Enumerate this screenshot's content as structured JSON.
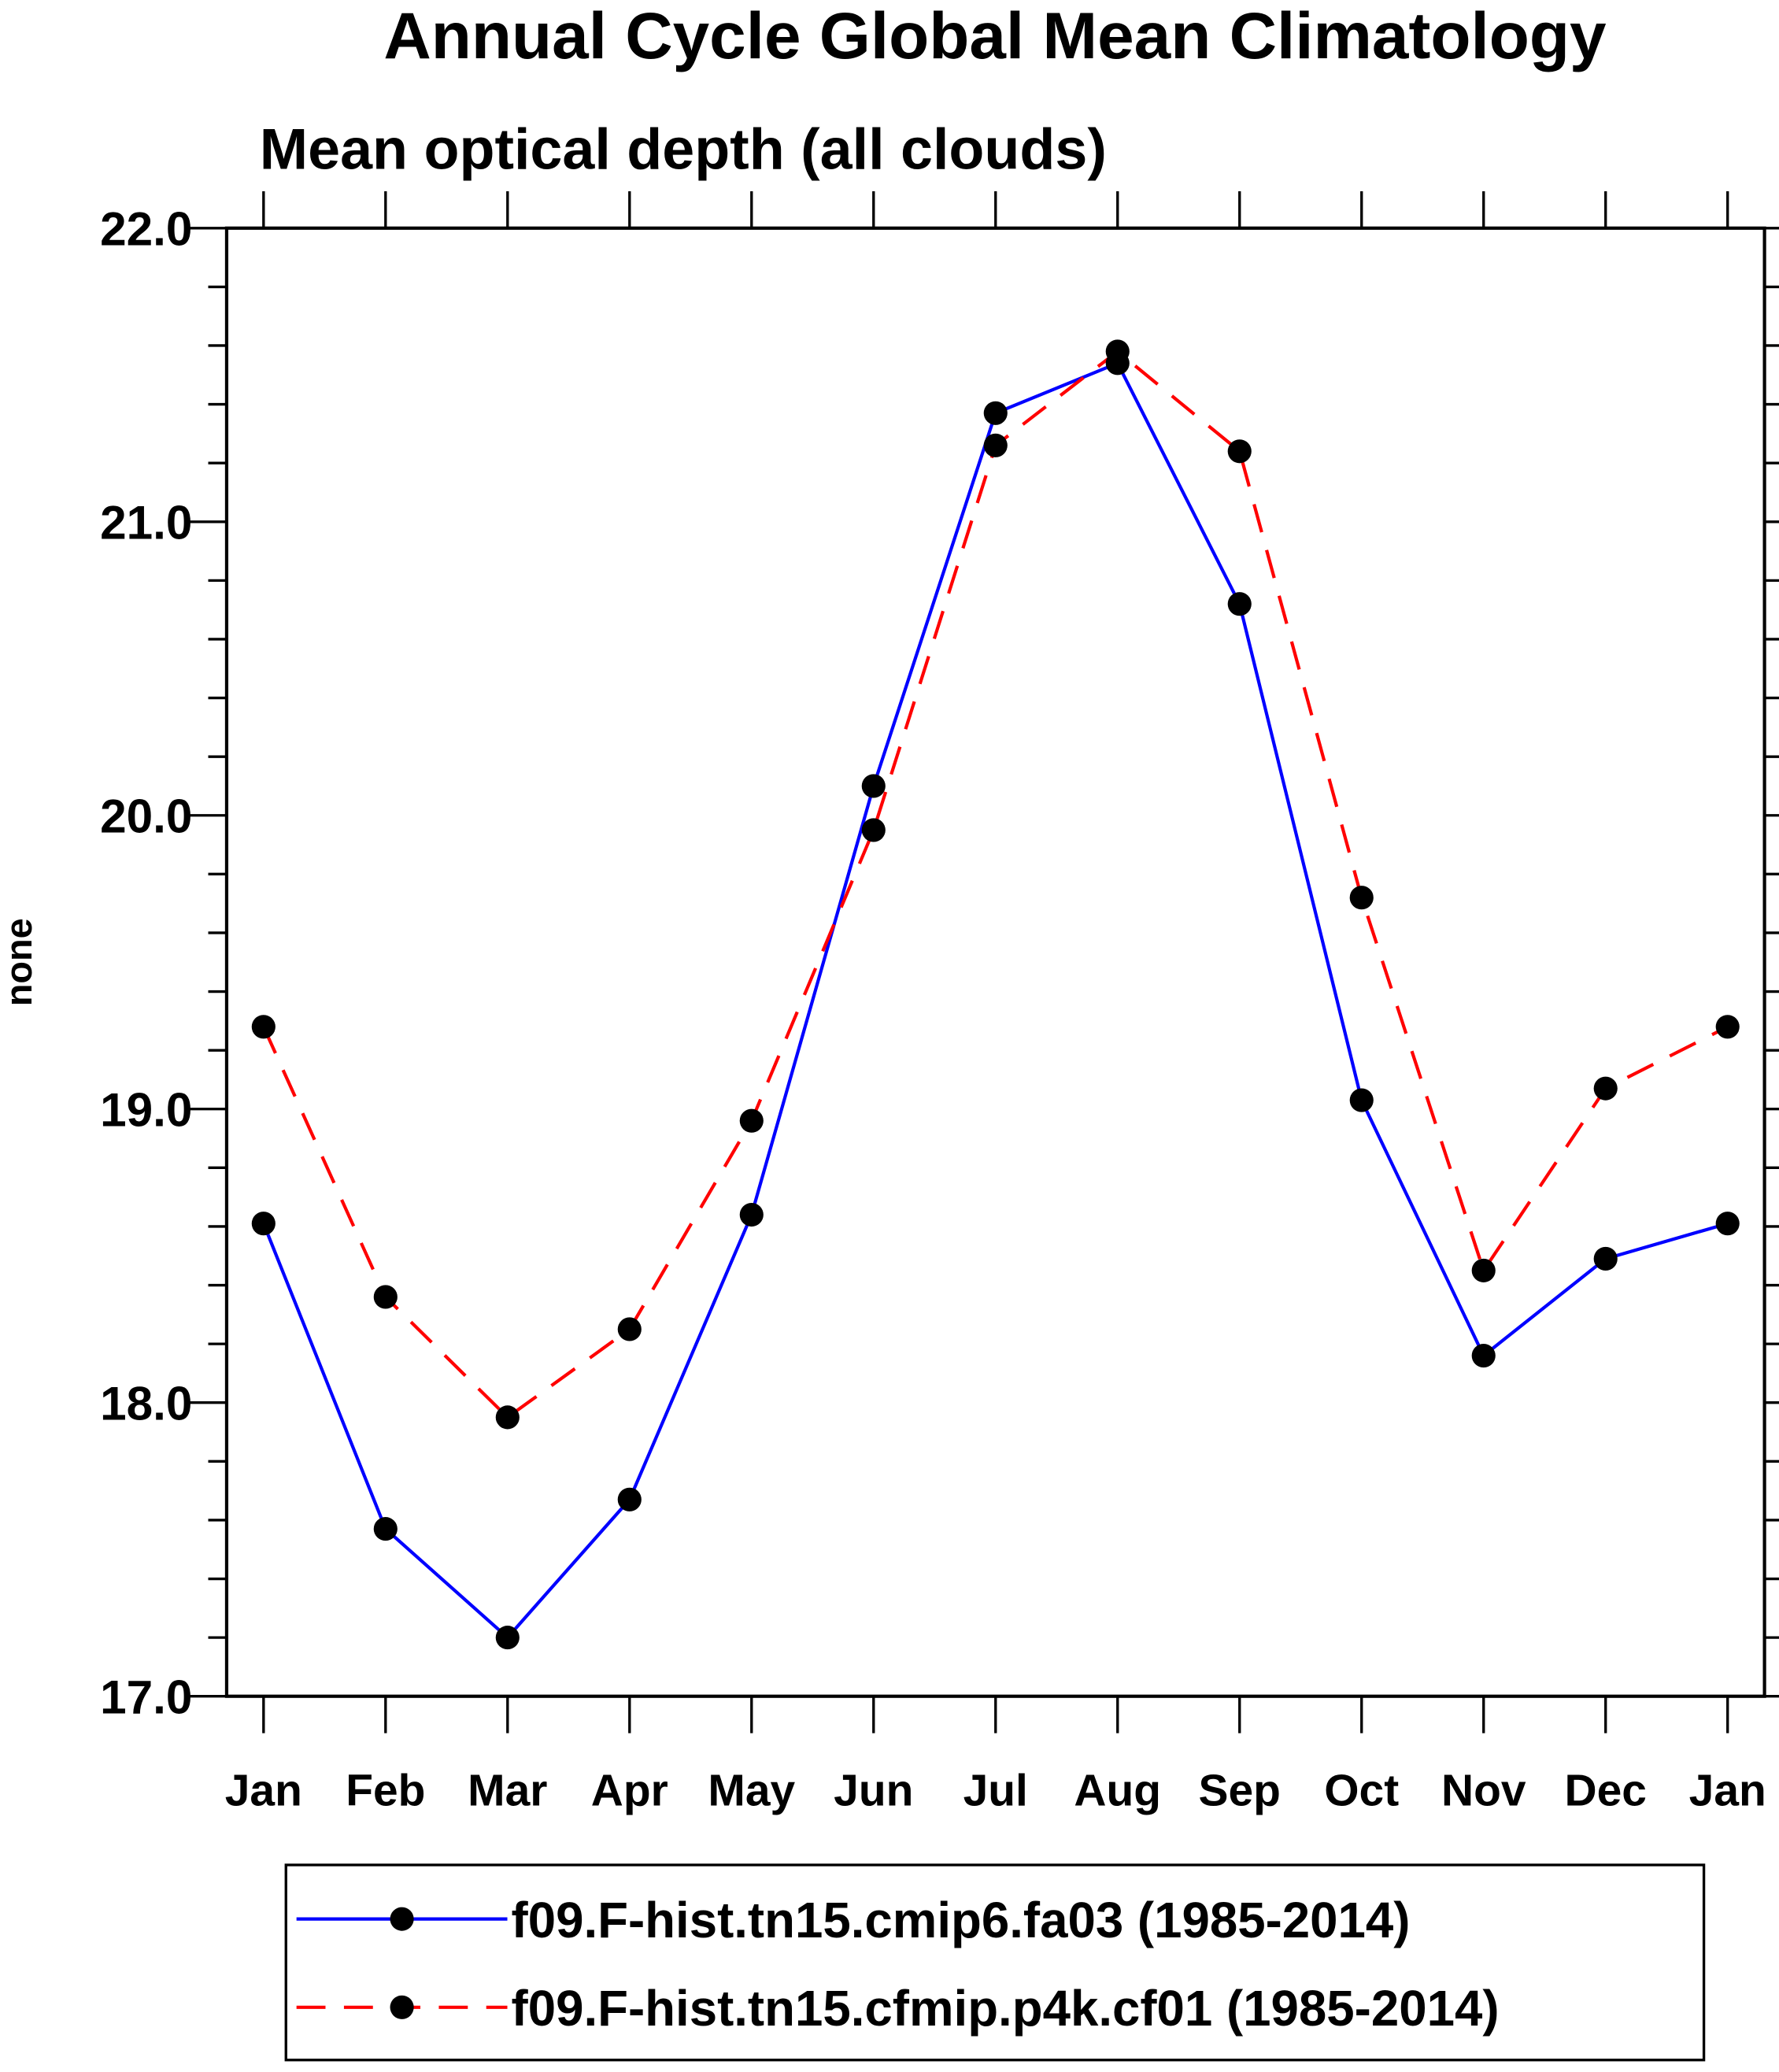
{
  "chart_data": {
    "type": "line",
    "title": "Annual Cycle Global Mean Climatology",
    "subtitle": "Mean optical depth (all clouds)",
    "xlabel": "",
    "ylabel": "none",
    "ylim": [
      17.0,
      22.0
    ],
    "yticks": [
      "17.0",
      "18.0",
      "19.0",
      "20.0",
      "21.0",
      "22.0"
    ],
    "yminor_step": 0.2,
    "categories": [
      "Jan",
      "Feb",
      "Mar",
      "Apr",
      "May",
      "Jun",
      "Jul",
      "Aug",
      "Sep",
      "Oct",
      "Nov",
      "Dec",
      "Jan"
    ],
    "grid": false,
    "legend_position": "bottom",
    "series": [
      {
        "name": "f09.F-hist.tn15.cmip6.fa03 (1985-2014)",
        "color": "#0000ff",
        "dash": "solid",
        "values": [
          18.61,
          17.57,
          17.2,
          17.67,
          18.64,
          20.1,
          21.37,
          21.54,
          20.72,
          19.03,
          18.16,
          18.49,
          18.61
        ]
      },
      {
        "name": "f09.F-hist.tn15.cfmip.p4k.cf01 (1985-2014)",
        "color": "#ff0000",
        "dash": "dashed",
        "values": [
          19.28,
          18.36,
          17.95,
          18.25,
          18.96,
          19.95,
          21.26,
          21.58,
          21.24,
          19.72,
          18.45,
          19.07,
          19.28
        ]
      }
    ]
  }
}
